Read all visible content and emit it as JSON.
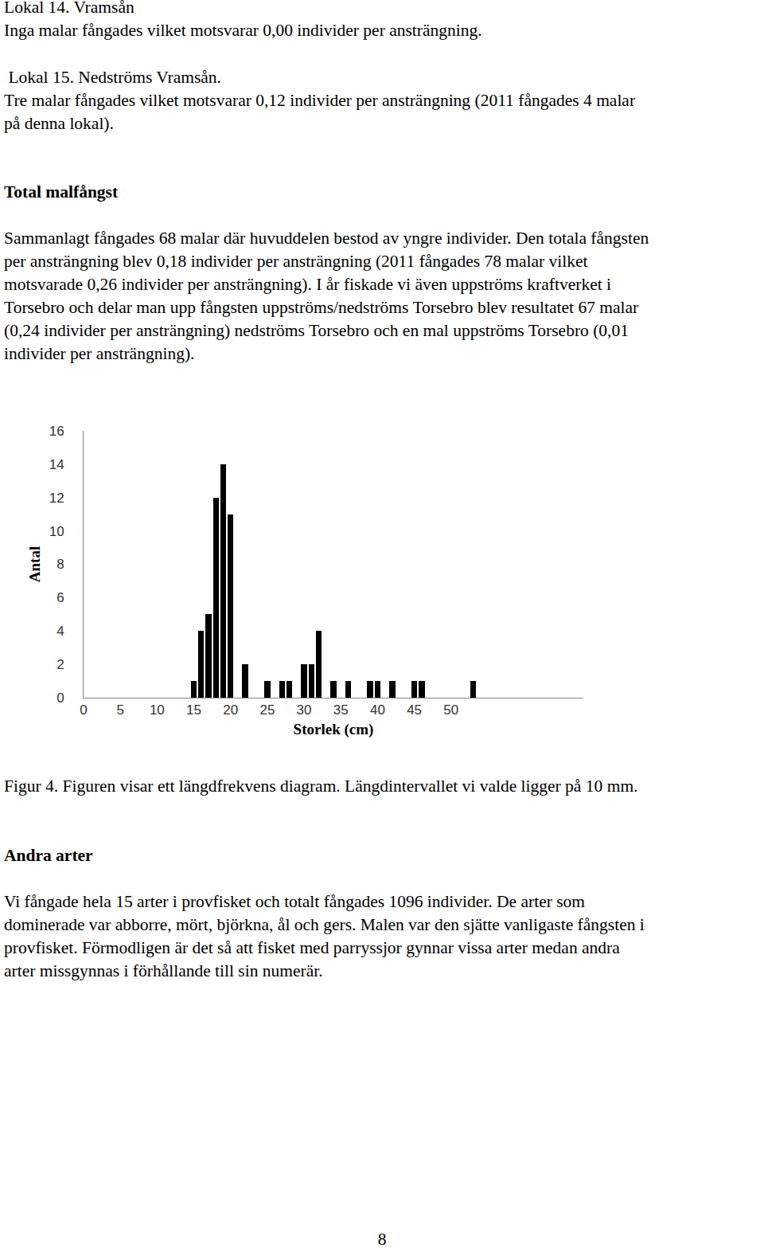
{
  "page": {
    "blocks": [
      {
        "kind": "text",
        "lines": [
          "Lokal 14. Vramsån",
          "Inga malar fångades vilket motsvarar 0,00 individer per ansträngning."
        ]
      },
      {
        "kind": "text",
        "lines": [
          " Lokal 15. Nedströms Vramsån.",
          "Tre malar fångades vilket motsvarar 0,12 individer per ansträngning (2011 fångades 4 malar",
          "på denna lokal)."
        ]
      },
      {
        "kind": "heading",
        "lines": [
          "Total malfångst"
        ]
      },
      {
        "kind": "text",
        "lines": [
          "Sammanlagt fångades 68 malar där huvuddelen bestod av yngre individer. Den totala fångsten",
          "per ansträngning blev 0,18 individer per ansträngning (2011 fångades 78 malar vilket",
          "motsvarade 0,26 individer per ansträngning). I år fiskade vi även uppströms kraftverket i",
          "Torsebro och delar man upp fångsten uppströms/nedströms Torsebro blev resultatet 67 malar",
          "(0,24 individer per ansträngning) nedströms Torsebro och en mal uppströms Torsebro (0,01",
          "individer per ansträngning)."
        ]
      },
      {
        "kind": "text",
        "lines": [
          "Figur 4. Figuren visar ett längdfrekvens diagram. Längdintervallet vi valde ligger på 10 mm."
        ]
      },
      {
        "kind": "heading",
        "lines": [
          "Andra arter"
        ]
      },
      {
        "kind": "text",
        "lines": [
          "Vi fångade hela 15 arter i provfisket och totalt fångades 1096 individer. De arter som",
          "dominerade var abborre, mört, björkna, ål och gers. Malen var den sjätte vanligaste fångsten i",
          "provfisket. Förmodligen är det så att fisket med parryssjor gynnar vissa arter medan andra",
          "arter missgynnas i förhållande till sin numerär."
        ]
      }
    ],
    "page_number": "8"
  },
  "chart_data": {
    "type": "bar",
    "x_label": "Storlek (cm)",
    "y_label": "Antal",
    "x": [
      15,
      16,
      17,
      18,
      19,
      20,
      22,
      25,
      27,
      28,
      30,
      31,
      32,
      34,
      36,
      39,
      40,
      42,
      45,
      46,
      53
    ],
    "values": [
      1,
      4,
      5,
      12,
      14,
      11,
      2,
      1,
      1,
      1,
      2,
      2,
      4,
      1,
      1,
      1,
      1,
      1,
      1,
      1,
      1
    ],
    "color": "#000000",
    "xlim": [
      0,
      68
    ],
    "xticks": [
      0,
      5,
      10,
      15,
      20,
      25,
      30,
      35,
      40,
      45,
      50
    ],
    "ylim": [
      0,
      16
    ],
    "yticks": [
      0,
      2,
      4,
      6,
      8,
      10,
      12,
      14,
      16
    ],
    "grid": false
  }
}
